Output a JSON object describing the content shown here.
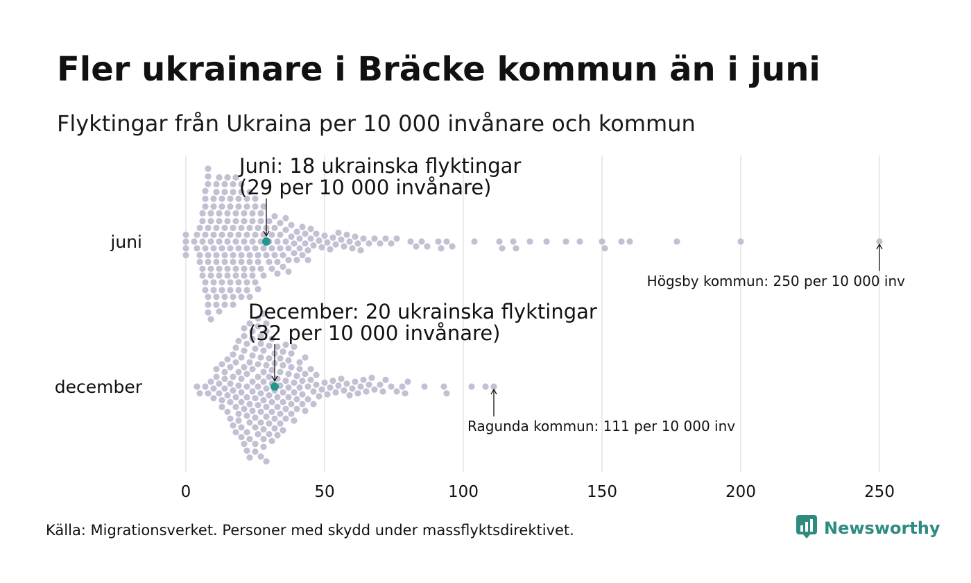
{
  "title": "Fler ukrainare i Bräcke kommun än i juni",
  "subtitle": "Flyktingar från Ukraina per 10 000 invånare och kommun",
  "source": "Källa: Migrationsverket. Personer med skydd under massflyktsdirektivet.",
  "brand": "Newsworthy",
  "colors": {
    "dots": "#c2c0d2",
    "highlight": "#21968a",
    "grid": "#d4d4d4",
    "brand": "#2e8b80"
  },
  "chart_data": {
    "type": "scatter",
    "xlim": [
      0,
      250
    ],
    "x_ticks": [
      0,
      50,
      100,
      150,
      200,
      250
    ],
    "tick_labels": [
      "0",
      "50",
      "100",
      "150",
      "200",
      "250"
    ],
    "grid": "vertical",
    "categories": [
      "juni",
      "december"
    ],
    "series": [
      {
        "name": "juni",
        "highlight": 29,
        "values": [
          0,
          0,
          0,
          0,
          3,
          4,
          4,
          5,
          5,
          5,
          6,
          6,
          6,
          6,
          6,
          7,
          7,
          7,
          7,
          7,
          7,
          7,
          8,
          8,
          8,
          8,
          8,
          8,
          8,
          8,
          8,
          9,
          9,
          9,
          9,
          9,
          9,
          10,
          10,
          10,
          10,
          10,
          10,
          11,
          11,
          11,
          11,
          11,
          11,
          11,
          12,
          12,
          12,
          12,
          12,
          12,
          12,
          13,
          13,
          13,
          13,
          13,
          13,
          14,
          14,
          14,
          14,
          14,
          14,
          14,
          15,
          15,
          15,
          15,
          15,
          15,
          16,
          16,
          16,
          16,
          16,
          16,
          17,
          17,
          17,
          17,
          17,
          17,
          17,
          18,
          18,
          18,
          18,
          18,
          18,
          19,
          19,
          19,
          19,
          19,
          19,
          20,
          20,
          20,
          20,
          20,
          20,
          21,
          21,
          21,
          21,
          21,
          22,
          22,
          22,
          22,
          22,
          22,
          23,
          23,
          23,
          23,
          23,
          24,
          24,
          24,
          24,
          24,
          25,
          25,
          25,
          25,
          25,
          26,
          26,
          26,
          26,
          27,
          27,
          27,
          27,
          28,
          28,
          28,
          28,
          29,
          29,
          30,
          30,
          30,
          31,
          31,
          31,
          32,
          32,
          32,
          33,
          33,
          33,
          34,
          34,
          34,
          35,
          35,
          36,
          36,
          36,
          37,
          37,
          37,
          38,
          38,
          39,
          39,
          40,
          40,
          41,
          41,
          42,
          42,
          43,
          43,
          44,
          44,
          45,
          45,
          46,
          47,
          48,
          49,
          50,
          51,
          52,
          53,
          54,
          55,
          56,
          57,
          58,
          59,
          60,
          61,
          62,
          63,
          64,
          66,
          68,
          70,
          72,
          74,
          76,
          81,
          83,
          85,
          87,
          91,
          92,
          94,
          96,
          104,
          113,
          114,
          118,
          119,
          124,
          130,
          137,
          142,
          150,
          151,
          157,
          160,
          177,
          200,
          250
        ]
      },
      {
        "name": "december",
        "highlight": 32,
        "values": [
          4,
          5,
          7,
          8,
          9,
          10,
          10,
          11,
          11,
          12,
          12,
          13,
          13,
          13,
          14,
          14,
          14,
          15,
          15,
          15,
          16,
          16,
          16,
          16,
          17,
          17,
          17,
          17,
          18,
          18,
          18,
          18,
          18,
          19,
          19,
          19,
          19,
          19,
          20,
          20,
          20,
          20,
          20,
          20,
          21,
          21,
          21,
          21,
          21,
          21,
          22,
          22,
          22,
          22,
          22,
          22,
          22,
          23,
          23,
          23,
          23,
          23,
          23,
          24,
          24,
          24,
          24,
          24,
          24,
          24,
          25,
          25,
          25,
          25,
          25,
          25,
          26,
          26,
          26,
          26,
          26,
          26,
          26,
          27,
          27,
          27,
          27,
          27,
          27,
          27,
          28,
          28,
          28,
          28,
          28,
          28,
          28,
          28,
          29,
          29,
          29,
          29,
          29,
          29,
          29,
          30,
          30,
          30,
          30,
          30,
          30,
          31,
          31,
          31,
          31,
          31,
          31,
          32,
          32,
          32,
          32,
          32,
          33,
          33,
          33,
          33,
          33,
          34,
          34,
          34,
          34,
          34,
          35,
          35,
          35,
          35,
          35,
          36,
          36,
          36,
          36,
          37,
          37,
          37,
          37,
          38,
          38,
          38,
          38,
          39,
          39,
          39,
          39,
          40,
          40,
          40,
          41,
          41,
          41,
          42,
          42,
          42,
          43,
          43,
          43,
          44,
          44,
          45,
          45,
          46,
          46,
          47,
          47,
          48,
          49,
          50,
          51,
          52,
          53,
          54,
          55,
          56,
          57,
          58,
          59,
          60,
          61,
          62,
          63,
          64,
          65,
          66,
          67,
          68,
          70,
          71,
          72,
          74,
          76,
          78,
          79,
          80,
          86,
          93,
          94,
          103,
          108,
          111
        ]
      }
    ],
    "annotations": [
      {
        "id": "juni-highlight",
        "text": [
          "Juni: 18 ukrainska flyktingar",
          "(29 per 10 000 invånare)"
        ]
      },
      {
        "id": "juni-max",
        "text": [
          "Högsby kommun: 250 per 10 000 inv"
        ]
      },
      {
        "id": "december-highlight",
        "text": [
          "December: 20 ukrainska flyktingar",
          "(32 per 10 000 invånare)"
        ]
      },
      {
        "id": "december-max",
        "text": [
          "Ragunda kommun: 111 per 10 000 inv"
        ]
      }
    ]
  }
}
